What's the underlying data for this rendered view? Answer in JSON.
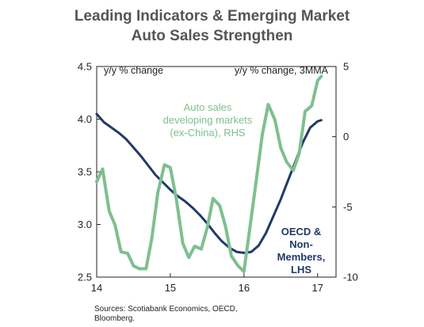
{
  "chart_data": {
    "type": "line",
    "title_line1": "Leading Indicators & Emerging Market",
    "title_line2": "Auto Sales Strengthen",
    "left_unit": "y/y % change",
    "right_unit": "y/y % change, 3MMA",
    "x_ticks": [
      "14",
      "15",
      "16",
      "17"
    ],
    "left_ticks": [
      "4.5",
      "4.0",
      "3.5",
      "3.0",
      "2.5"
    ],
    "right_ticks": [
      "5",
      "0",
      "-5",
      "-10"
    ],
    "ylim_left": [
      2.5,
      4.5
    ],
    "ylim_right": [
      -10,
      5
    ],
    "xlim": [
      14,
      17.25
    ],
    "grid": false,
    "series": [
      {
        "name": "OECD & Non-Members, LHS",
        "label_lines": [
          "OECD &",
          "Non-",
          "Members,",
          "LHS"
        ],
        "axis": "left",
        "color": "#1f3a68",
        "x": [
          14.0,
          14.1,
          14.2,
          14.3,
          14.4,
          14.5,
          14.6,
          14.7,
          14.8,
          14.9,
          15.0,
          15.1,
          15.2,
          15.3,
          15.4,
          15.5,
          15.6,
          15.7,
          15.8,
          15.9,
          16.0,
          16.1,
          16.2,
          16.3,
          16.4,
          16.5,
          16.6,
          16.7,
          16.8,
          16.9,
          17.0,
          17.05
        ],
        "values": [
          4.05,
          3.97,
          3.92,
          3.87,
          3.81,
          3.73,
          3.65,
          3.56,
          3.47,
          3.4,
          3.33,
          3.27,
          3.22,
          3.16,
          3.09,
          3.01,
          2.92,
          2.84,
          2.78,
          2.74,
          2.73,
          2.74,
          2.8,
          2.92,
          3.08,
          3.24,
          3.42,
          3.6,
          3.78,
          3.92,
          3.98,
          3.99
        ]
      },
      {
        "name": "Auto sales developing markets (ex-China), RHS",
        "label_lines": [
          "Auto sales",
          "developing markets",
          "(ex-China), RHS"
        ],
        "axis": "right",
        "color": "#7fbf8f",
        "x": [
          14.0,
          14.08,
          14.17,
          14.25,
          14.33,
          14.42,
          14.5,
          14.58,
          14.67,
          14.75,
          14.83,
          14.92,
          15.0,
          15.08,
          15.17,
          15.25,
          15.33,
          15.42,
          15.5,
          15.58,
          15.67,
          15.75,
          15.83,
          15.92,
          16.0,
          16.08,
          16.17,
          16.25,
          16.33,
          16.42,
          16.5,
          16.58,
          16.67,
          16.75,
          16.83,
          16.92,
          17.0,
          17.05
        ],
        "values": [
          -3.2,
          -2.3,
          -5.3,
          -6.3,
          -8.2,
          -8.3,
          -9.2,
          -9.4,
          -9.4,
          -7.2,
          -4.0,
          -2.0,
          -2.2,
          -4.4,
          -7.6,
          -8.6,
          -7.8,
          -8.0,
          -6.5,
          -4.4,
          -4.9,
          -6.4,
          -8.5,
          -9.2,
          -9.6,
          -6.5,
          -3.0,
          0.2,
          2.3,
          1.2,
          -0.8,
          -1.8,
          -2.4,
          -1.2,
          1.8,
          2.2,
          4.0,
          4.3
        ]
      }
    ]
  },
  "source": {
    "line1": "Sources: Scotiabank Economics, OECD,",
    "line2": "Bloomberg."
  }
}
